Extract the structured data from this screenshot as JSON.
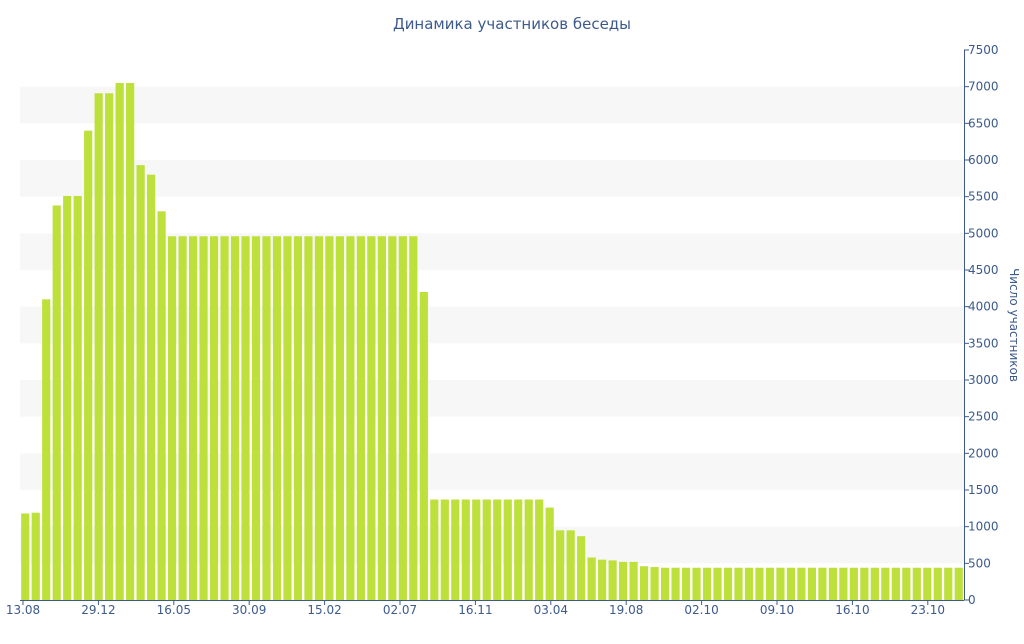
{
  "chart_data": {
    "type": "bar",
    "title": "Динамика участников беседы",
    "xlabel": "",
    "ylabel": "Число участников",
    "ylim": [
      0,
      7500
    ],
    "yticks": [
      0,
      500,
      1000,
      1500,
      2000,
      2500,
      3000,
      3500,
      4000,
      4500,
      5000,
      5500,
      6000,
      6500,
      7000,
      7500
    ],
    "x_tick_labels": [
      "13.08",
      "29.12",
      "16.05",
      "30.09",
      "15.02",
      "02.07",
      "16.11",
      "03.04",
      "19.08",
      "02.10",
      "09.10",
      "16.10",
      "23.10"
    ],
    "grid": "horizontal bands",
    "y_axis_position": "right",
    "bar_color": "#bde03a",
    "band_color": "#f7f7f7",
    "text_color": "#3c5a8c",
    "values": [
      1180,
      1190,
      4100,
      5380,
      5510,
      5510,
      6400,
      6910,
      6910,
      7050,
      7050,
      5930,
      5800,
      5300,
      4960,
      4960,
      4960,
      4960,
      4960,
      4960,
      4960,
      4960,
      4960,
      4960,
      4960,
      4960,
      4960,
      4960,
      4960,
      4960,
      4960,
      4960,
      4960,
      4960,
      4960,
      4960,
      4960,
      4960,
      4200,
      1370,
      1370,
      1370,
      1370,
      1370,
      1370,
      1370,
      1370,
      1370,
      1370,
      1370,
      1260,
      950,
      950,
      870,
      580,
      550,
      540,
      520,
      520,
      460,
      450,
      440,
      440,
      440,
      440,
      440,
      440,
      440,
      440,
      440,
      440,
      440,
      440,
      440,
      440,
      440,
      440,
      440,
      440,
      440,
      440,
      440,
      440,
      440,
      440,
      440,
      440,
      440,
      440,
      440
    ]
  }
}
